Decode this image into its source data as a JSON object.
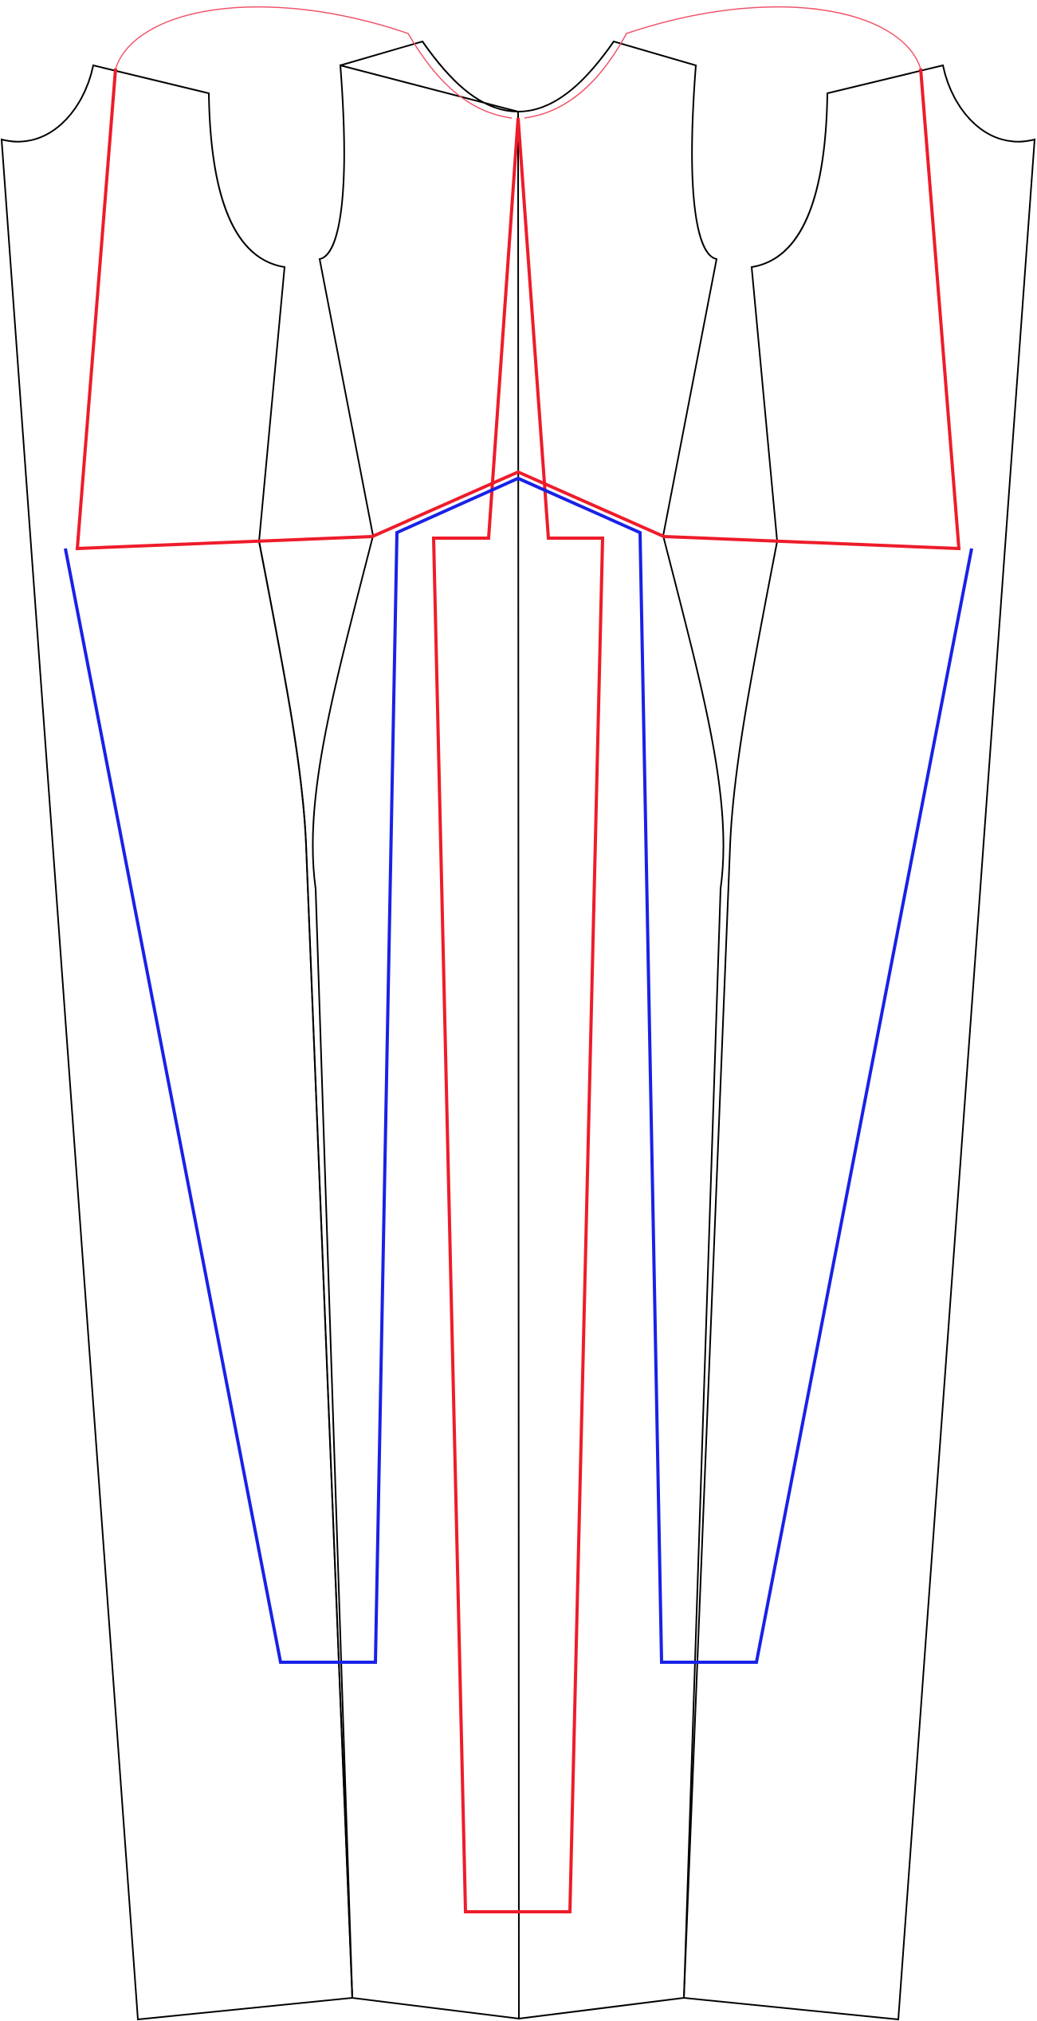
{
  "diagram": {
    "kind": "sewing-pattern-layout",
    "colors": {
      "background": "#ffffff",
      "pattern_outline": "#000000",
      "red_guide": "#ee1c2a",
      "red_thin_curve": "#f0556a",
      "blue_guide": "#1822e6"
    },
    "pieces": [
      {
        "name": "left-side-panel",
        "color_role": "pattern_outline"
      },
      {
        "name": "left-front-panel",
        "color_role": "pattern_outline"
      },
      {
        "name": "center-front-panel",
        "color_role": "pattern_outline"
      },
      {
        "name": "right-front-panel",
        "color_role": "pattern_outline"
      },
      {
        "name": "right-side-panel",
        "color_role": "pattern_outline"
      }
    ],
    "guides": [
      {
        "name": "red-yoke-outline",
        "color_role": "red_guide"
      },
      {
        "name": "red-center-placket",
        "color_role": "red_guide"
      },
      {
        "name": "blue-inner-outline",
        "color_role": "blue_guide"
      },
      {
        "name": "red-thin-neck-curves",
        "color_role": "red_thin_curve"
      }
    ]
  }
}
